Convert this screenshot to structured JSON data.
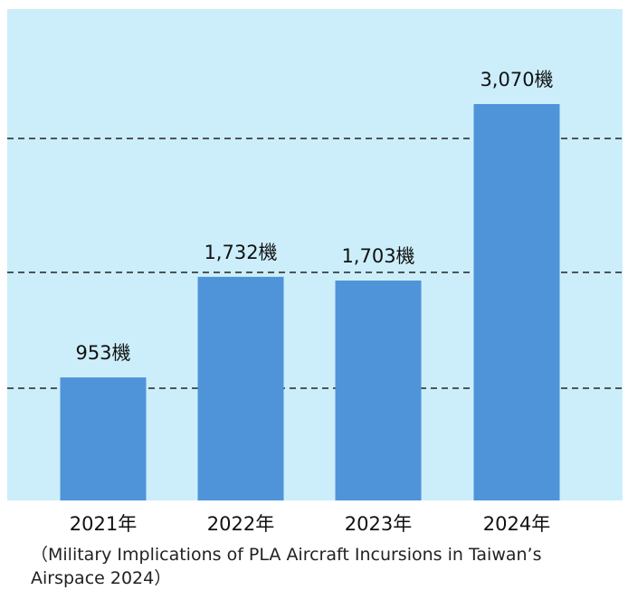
{
  "colors": {
    "plot_background": "#cceefb",
    "bar": "#4f94d9",
    "gridline": "#222222",
    "text": "#111111"
  },
  "chart_data": {
    "type": "bar",
    "categories": [
      "2021年",
      "2022年",
      "2023年",
      "2024年"
    ],
    "values": [
      953,
      1732,
      1703,
      3070
    ],
    "data_labels": [
      "953機",
      "1,732機",
      "1,703機",
      "3,070機"
    ],
    "title": "",
    "xlabel": "",
    "ylabel": "",
    "ylim": [
      0,
      3800
    ],
    "gridlines": "dashed horizontal",
    "legend": "none"
  },
  "source_note": "（Military Implications of PLA Aircraft Incursions in Taiwan’s Airspace 2024）"
}
